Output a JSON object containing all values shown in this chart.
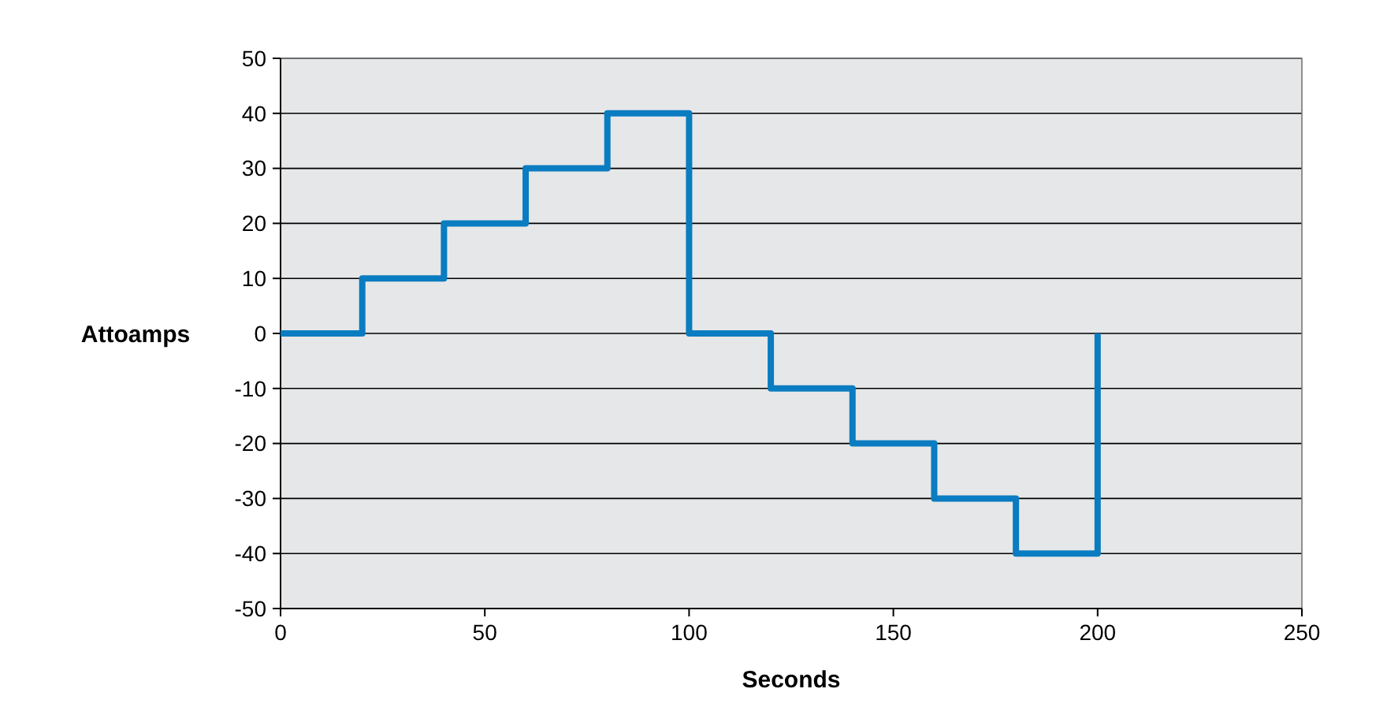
{
  "chart_data": {
    "type": "step",
    "xlabel": "Seconds",
    "ylabel": "Attoamps",
    "x": [
      0,
      20,
      40,
      60,
      80,
      100,
      120,
      140,
      160,
      180,
      200
    ],
    "series": [
      {
        "color": "#0a7cc1",
        "values": [
          0,
          10,
          20,
          30,
          40,
          0,
          -10,
          -20,
          -30,
          -40,
          0
        ]
      }
    ],
    "xlim": [
      0,
      250
    ],
    "xticks": [
      0,
      50,
      100,
      150,
      200,
      250
    ],
    "ylim": [
      -50,
      50
    ],
    "yticks": [
      -50,
      -40,
      -30,
      -20,
      -10,
      0,
      10,
      20,
      30,
      40,
      50
    ],
    "grid": "y"
  }
}
